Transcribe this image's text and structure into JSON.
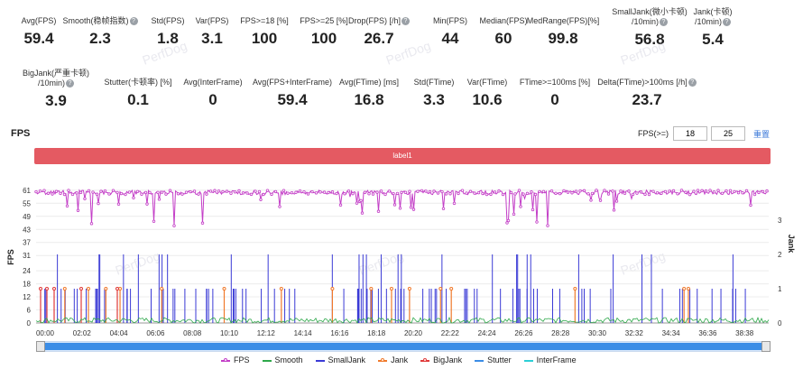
{
  "stats": [
    {
      "label": "Avg(FPS)",
      "value": "59.4",
      "help": false
    },
    {
      "label": "Smooth(稳帧指数)",
      "value": "2.3",
      "help": true
    },
    {
      "label": "Std(FPS)",
      "value": "1.8",
      "help": false
    },
    {
      "label": "Var(FPS)",
      "value": "3.1",
      "help": false
    },
    {
      "label": "FPS>=18 [%]",
      "value": "100",
      "help": false
    },
    {
      "label": "FPS>=25 [%]",
      "value": "100",
      "help": false
    },
    {
      "label": "Drop(FPS) [/h]",
      "value": "26.7",
      "help": true
    },
    {
      "label": "Min(FPS)",
      "value": "44",
      "help": false
    },
    {
      "label": "Median(FPS)",
      "value": "60",
      "help": false
    },
    {
      "label": "MedRange(FPS)[%]",
      "value": "99.8",
      "help": false
    },
    {
      "label": "SmallJank(微小卡顿)",
      "label2": "/10min)",
      "value": "56.8",
      "help": true
    },
    {
      "label": "Jank(卡顿)",
      "label2": "/10min)",
      "value": "5.4",
      "help": true
    },
    {
      "label": "BigJank(严重卡顿)",
      "label2": "/10min)",
      "value": "3.9",
      "help": true
    },
    {
      "label": "Stutter(卡顿率) [%]",
      "value": "0.1",
      "help": false
    },
    {
      "label": "Avg(InterFrame)",
      "value": "0",
      "help": false
    },
    {
      "label": "Avg(FPS+InterFrame)",
      "value": "59.4",
      "help": false
    },
    {
      "label": "Avg(FTime) [ms]",
      "value": "16.8",
      "help": false
    },
    {
      "label": "Std(FTime)",
      "value": "3.3",
      "help": false
    },
    {
      "label": "Var(FTime)",
      "value": "10.6",
      "help": false
    },
    {
      "label": "FTime>=100ms [%]",
      "value": "0",
      "help": false
    },
    {
      "label": "Delta(FTime)>100ms [/h]",
      "value": "23.7",
      "help": true
    }
  ],
  "chart_header": {
    "title": "FPS",
    "threshold_label": "FPS(>=)",
    "threshold_1": "18",
    "threshold_2": "25",
    "reset": "重置"
  },
  "label_bar": "label1",
  "watermark": "PerfDog",
  "chart_data": {
    "type": "line",
    "left_axis": {
      "label": "FPS",
      "ticks": [
        0,
        6,
        12,
        18,
        24,
        31,
        37,
        43,
        49,
        55,
        61
      ],
      "range": [
        0,
        63
      ]
    },
    "right_axis": {
      "label": "Jank",
      "ticks": [
        0,
        1,
        2,
        3
      ],
      "range": [
        0,
        4
      ]
    },
    "x_ticks": [
      "00:00",
      "02:02",
      "04:04",
      "06:06",
      "08:08",
      "10:10",
      "12:12",
      "14:14",
      "16:16",
      "18:18",
      "20:20",
      "22:22",
      "24:24",
      "26:26",
      "28:28",
      "30:30",
      "32:32",
      "34:34",
      "36:36",
      "38:38"
    ],
    "series": [
      {
        "name": "FPS",
        "color": "#c33ec7",
        "approx": "mostly 59-61, dips to ~44 min"
      },
      {
        "name": "Smooth",
        "color": "#2ea84a"
      },
      {
        "name": "SmallJank",
        "color": "#3a3ad6"
      },
      {
        "name": "Jank",
        "color": "#f07a2c"
      },
      {
        "name": "BigJank",
        "color": "#e03a3a"
      },
      {
        "name": "Stutter",
        "color": "#3b8de6"
      },
      {
        "name": "InterFrame",
        "color": "#2ccfd6"
      }
    ]
  }
}
